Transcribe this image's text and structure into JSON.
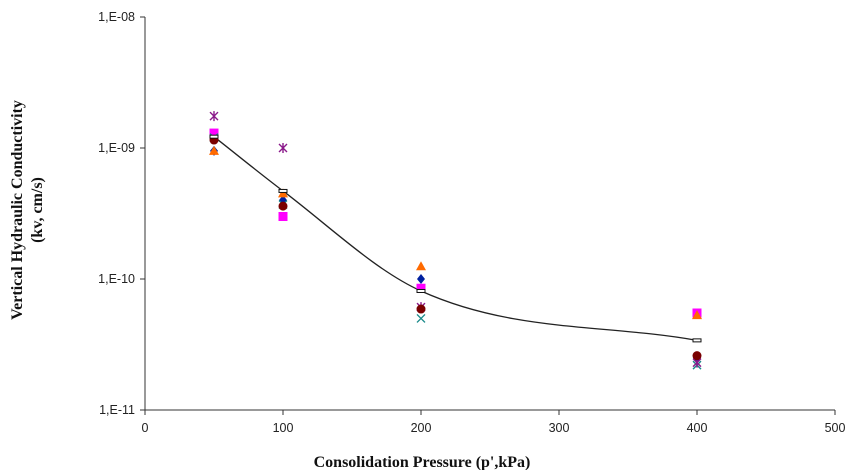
{
  "chart_data": {
    "type": "scatter",
    "xlabel": "Consolidation Pressure (p',kPa)",
    "ylabel_line1": "Vertical Hydraulic Conductivity",
    "ylabel_line2": "(kv, cm/s)",
    "xlim": [
      0,
      500
    ],
    "ylim": [
      1e-11,
      1e-08
    ],
    "y_scale": "log",
    "grid": false,
    "legend": "none",
    "x_ticks": [
      "0",
      "100",
      "200",
      "300",
      "400",
      "500"
    ],
    "y_ticks": [
      "1,E-11",
      "1,E-10",
      "1,E-09",
      "1,E-08"
    ],
    "series": [
      {
        "marker": "diamond",
        "color": "#00209f",
        "x": [
          50,
          100,
          200,
          400
        ],
        "y": [
          9.5e-10,
          4e-10,
          1e-10,
          2.5e-11
        ]
      },
      {
        "marker": "square",
        "color": "#ff00ff",
        "x": [
          50,
          100,
          200,
          400
        ],
        "y": [
          1.3e-09,
          3e-10,
          8.5e-11,
          5.5e-11
        ]
      },
      {
        "marker": "triangle",
        "color": "#ff6a00",
        "x": [
          50,
          100,
          200,
          400
        ],
        "y": [
          9.5e-10,
          4.5e-10,
          1.25e-10,
          5.3e-11
        ]
      },
      {
        "marker": "x",
        "color": "#1a8a8a",
        "x": [
          50,
          100,
          200,
          400
        ],
        "y": [
          1.2e-09,
          3.7e-10,
          5e-11,
          2.2e-11
        ]
      },
      {
        "marker": "star",
        "color": "#8b1a8b",
        "x": [
          50,
          100,
          200,
          400
        ],
        "y": [
          1.75e-09,
          1e-09,
          6.1e-11,
          2.3e-11
        ]
      },
      {
        "marker": "circle",
        "color": "#7a0000",
        "x": [
          50,
          100,
          200,
          400
        ],
        "y": [
          1.15e-09,
          3.6e-10,
          5.9e-11,
          2.6e-11
        ]
      },
      {
        "marker": "dash",
        "color": "#111111",
        "x": [
          50,
          100,
          200,
          400
        ],
        "y": [
          1.22e-09,
          4.7e-10,
          8.1e-11,
          3.4e-11
        ]
      }
    ],
    "trend_line": {
      "color": "#222222",
      "x": [
        50,
        100,
        200,
        400
      ],
      "y": [
        1.22e-09,
        4.7e-10,
        8.1e-11,
        3.4e-11
      ]
    }
  }
}
